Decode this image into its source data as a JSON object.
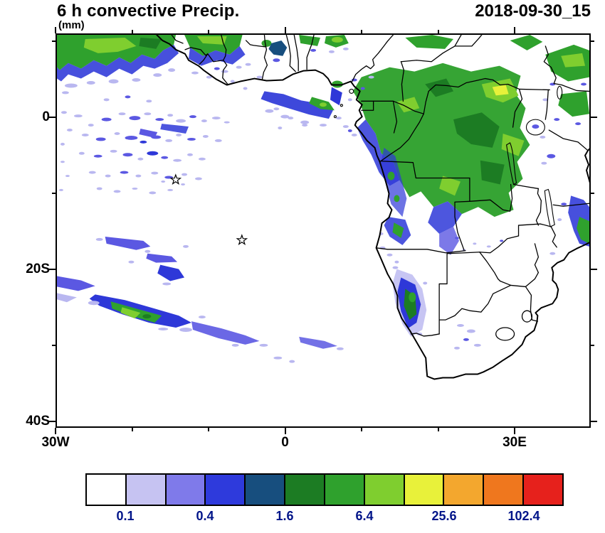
{
  "header": {
    "title": "6 h convective Precip.",
    "units": "(mm)",
    "timestamp": "2018-09-30_15"
  },
  "map": {
    "y_axis": {
      "ticks": [
        {
          "label": "0",
          "lat": 0
        },
        {
          "label": "20S",
          "lat": -20
        },
        {
          "label": "40S",
          "lat": -40
        }
      ],
      "minor_lats": [
        10,
        -10,
        -30
      ]
    },
    "x_axis": {
      "ticks": [
        {
          "label": "30W",
          "lon": -30
        },
        {
          "label": "0",
          "lon": 0
        },
        {
          "label": "30E",
          "lon": 30
        }
      ],
      "minor_lons": [
        -20,
        -10,
        10,
        20
      ]
    },
    "markers": [
      {
        "name": "star",
        "lon": -14.4,
        "lat": -8.2
      },
      {
        "name": "star",
        "lon": -5.7,
        "lat": -16.2
      }
    ]
  },
  "colorbar": {
    "label_color": "#001489",
    "colors": [
      "#ffffff",
      "#c6c3f2",
      "#7f7aea",
      "#2e3adc",
      "#174e7e",
      "#1c7c23",
      "#2fa12d",
      "#7fce2f",
      "#e8f13a",
      "#f3a72e",
      "#ef771e",
      "#e6211c"
    ],
    "labels": [
      "0.1",
      "0.4",
      "1.6",
      "6.4",
      "25.6",
      "102.4"
    ]
  }
}
